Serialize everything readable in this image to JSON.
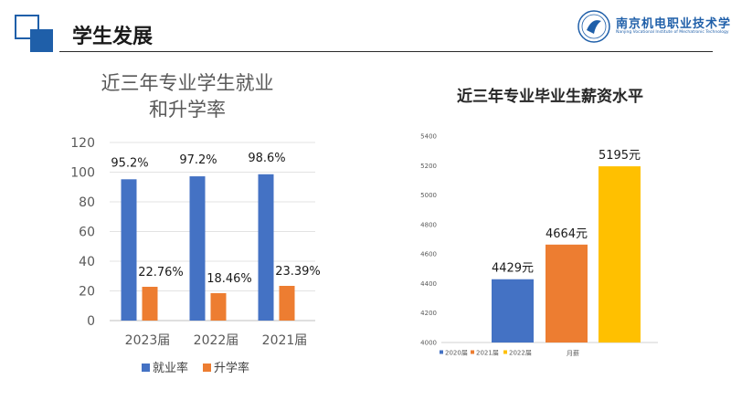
{
  "header": {
    "title": "学生发展",
    "logo_text": "南京机电职业技术学院",
    "logo_sub": "Nanjing Vocational Institute of Mechatronic Technology"
  },
  "chart_data": [
    {
      "type": "bar",
      "title_lines": [
        "近三年专业学生就业",
        "和升学率"
      ],
      "categories": [
        "2023届",
        "2022届",
        "2021届"
      ],
      "series": [
        {
          "name": "就业率",
          "values": [
            95.2,
            97.2,
            98.6
          ],
          "labels": [
            "95.2%",
            "97.2%",
            "98.6%"
          ],
          "color": "#4472c4"
        },
        {
          "name": "升学率",
          "values": [
            22.76,
            18.46,
            23.39
          ],
          "labels": [
            "22.76%",
            "18.46%",
            "23.39%"
          ],
          "color": "#ed7d31"
        }
      ],
      "ylim": [
        0,
        120
      ],
      "yticks": [
        0,
        20,
        40,
        60,
        80,
        100,
        120
      ],
      "legend": "bottom",
      "grid": true
    },
    {
      "type": "bar",
      "title": "近三年专业毕业生薪资水平",
      "categories": [
        "月薪"
      ],
      "series": [
        {
          "name": "2020届",
          "values": [
            4429
          ],
          "labels": [
            "4429元"
          ],
          "color": "#4472c4"
        },
        {
          "name": "2021届",
          "values": [
            4664
          ],
          "labels": [
            "4664元"
          ],
          "color": "#ed7d31"
        },
        {
          "name": "2022届",
          "values": [
            5195
          ],
          "labels": [
            "5195元"
          ],
          "color": "#ffc000"
        }
      ],
      "ylim": [
        4000,
        5400
      ],
      "yticks": [
        4000,
        4200,
        4400,
        4600,
        4800,
        5000,
        5200,
        5400
      ],
      "legend": "bottom-left",
      "grid": false
    }
  ]
}
